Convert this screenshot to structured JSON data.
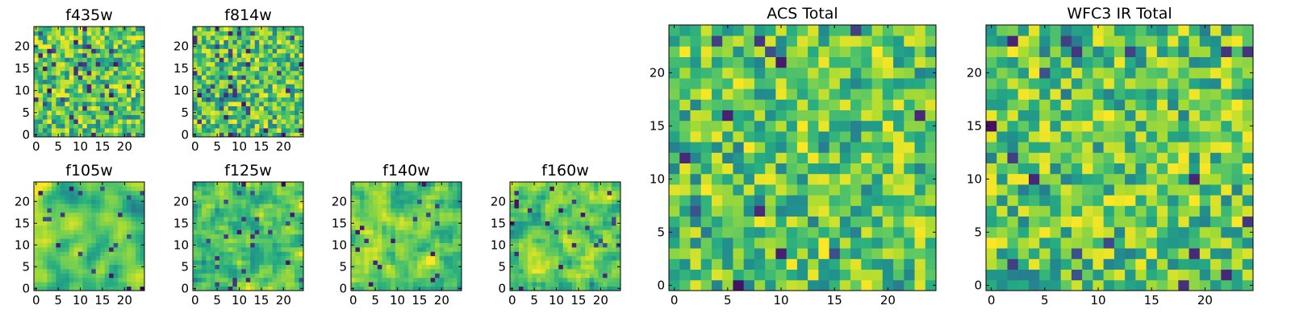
{
  "colormap": "viridis",
  "chart_data": [
    {
      "type": "heatmap",
      "title": "f435w",
      "grid": [
        25,
        25
      ],
      "xticks": [
        "0",
        "5",
        "10",
        "15",
        "20"
      ],
      "yticks": [
        "0",
        "5",
        "10",
        "15",
        "20"
      ],
      "xlim": [
        -0.5,
        24.5
      ],
      "ylim": [
        -0.5,
        24.5
      ],
      "values": "25x25 pixel intensity image (noise-like, viridis colormap)"
    },
    {
      "type": "heatmap",
      "title": "f814w",
      "grid": [
        25,
        25
      ],
      "xticks": [
        "0",
        "5",
        "10",
        "15",
        "20"
      ],
      "yticks": [
        "0",
        "5",
        "10",
        "15",
        "20"
      ],
      "xlim": [
        -0.5,
        24.5
      ],
      "ylim": [
        -0.5,
        24.5
      ],
      "values": "25x25 pixel intensity image (noise-like, viridis colormap)"
    },
    {
      "type": "heatmap",
      "title": "f105w",
      "grid": [
        25,
        25
      ],
      "xticks": [
        "0",
        "5",
        "10",
        "15",
        "20"
      ],
      "yticks": [
        "0",
        "5",
        "10",
        "15",
        "20"
      ],
      "xlim": [
        -0.5,
        24.5
      ],
      "ylim": [
        -0.5,
        24.5
      ],
      "values": "25x25 pixel intensity image (smooth noise, viridis colormap)"
    },
    {
      "type": "heatmap",
      "title": "f125w",
      "grid": [
        25,
        25
      ],
      "xticks": [
        "0",
        "5",
        "10",
        "15",
        "20"
      ],
      "yticks": [
        "0",
        "5",
        "10",
        "15",
        "20"
      ],
      "xlim": [
        -0.5,
        24.5
      ],
      "ylim": [
        -0.5,
        24.5
      ],
      "values": "25x25 pixel intensity image (smooth noise, viridis colormap)"
    },
    {
      "type": "heatmap",
      "title": "f140w",
      "grid": [
        25,
        25
      ],
      "xticks": [
        "0",
        "5",
        "10",
        "15",
        "20"
      ],
      "yticks": [
        "0",
        "5",
        "10",
        "15",
        "20"
      ],
      "xlim": [
        -0.5,
        24.5
      ],
      "ylim": [
        -0.5,
        24.5
      ],
      "values": "25x25 pixel intensity image (smooth noise, viridis colormap)"
    },
    {
      "type": "heatmap",
      "title": "f160w",
      "grid": [
        25,
        25
      ],
      "xticks": [
        "0",
        "5",
        "10",
        "15",
        "20"
      ],
      "yticks": [
        "0",
        "5",
        "10",
        "15",
        "20"
      ],
      "xlim": [
        -0.5,
        24.5
      ],
      "ylim": [
        -0.5,
        24.5
      ],
      "values": "25x25 pixel intensity image (smooth noise, viridis colormap)"
    },
    {
      "type": "heatmap",
      "title": "ACS Total",
      "grid": [
        25,
        25
      ],
      "xticks": [
        "0",
        "5",
        "10",
        "15",
        "20"
      ],
      "yticks": [
        "0",
        "5",
        "10",
        "15",
        "20"
      ],
      "xlim": [
        -0.5,
        24.5
      ],
      "ylim": [
        -0.5,
        24.5
      ],
      "values": "25x25 pixel intensity image (noise, viridis colormap)"
    },
    {
      "type": "heatmap",
      "title": "WFC3 IR Total",
      "grid": [
        25,
        25
      ],
      "xticks": [
        "0",
        "5",
        "10",
        "15",
        "20"
      ],
      "yticks": [
        "0",
        "5",
        "10",
        "15",
        "20"
      ],
      "xlim": [
        -0.5,
        24.5
      ],
      "ylim": [
        -0.5,
        24.5
      ],
      "values": "25x25 pixel intensity image (noise, viridis colormap)"
    }
  ]
}
